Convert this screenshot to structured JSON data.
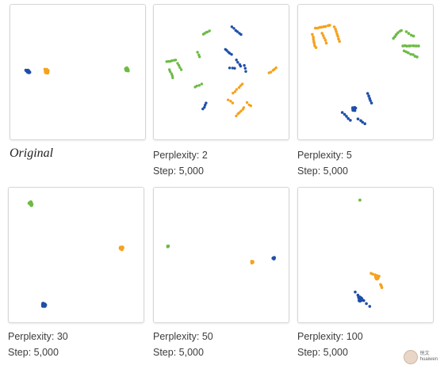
{
  "colors": {
    "blue": "#1f4fa8",
    "orange": "#f5a21c",
    "green": "#6dbb45",
    "panel_border": "#d6d6d6"
  },
  "panels": [
    {
      "caption_title": "Original",
      "caption_step": ""
    },
    {
      "caption_title": "Perplexity: 2",
      "caption_step": "Step: 5,000"
    },
    {
      "caption_title": "Perplexity: 5",
      "caption_step": "Step: 5,000"
    },
    {
      "caption_title": "Perplexity: 30",
      "caption_step": "Step: 5,000"
    },
    {
      "caption_title": "Perplexity: 50",
      "caption_step": "Step: 5,000"
    },
    {
      "caption_title": "Perplexity: 100",
      "caption_step": "Step: 5,000"
    }
  ],
  "watermark": {
    "line1": "悦文",
    "line2": "huaiwen"
  }
}
